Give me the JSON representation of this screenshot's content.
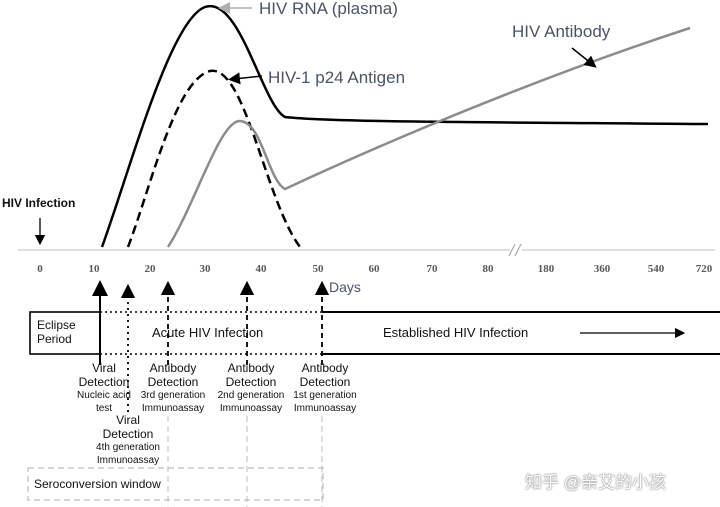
{
  "labels": {
    "hiv_rna": "HIV RNA (plasma)",
    "p24": "HIV-1 p24 Antigen",
    "antibody": "HIV Antibody",
    "infection": "HIV Infection",
    "days": "Days"
  },
  "axis": {
    "ticks": [
      "0",
      "10",
      "20",
      "30",
      "40",
      "50",
      "60",
      "70",
      "80",
      "180",
      "360",
      "540",
      "720"
    ],
    "break_mark": "//"
  },
  "periods": {
    "eclipse": [
      "Eclipse",
      "Period"
    ],
    "acute": "Acute HIV Infection",
    "established": "Established HIV Infection"
  },
  "detections": [
    {
      "title": [
        "Viral",
        "Detection"
      ],
      "sub": [
        "Nucleic acid",
        "test"
      ]
    },
    {
      "title": [
        "Viral",
        "Detection"
      ],
      "sub": [
        "4th generation",
        "Immunoassay"
      ]
    },
    {
      "title": [
        "Antibody",
        "Detection"
      ],
      "sub": [
        "3rd generation",
        "Immunoassay"
      ]
    },
    {
      "title": [
        "Antibody",
        "Detection"
      ],
      "sub": [
        "2nd generation",
        "Immunoassay"
      ]
    },
    {
      "title": [
        "Antibody",
        "Detection"
      ],
      "sub": [
        "1st generation",
        "Immunoassay"
      ]
    }
  ],
  "seroconversion": "Seroconversion window",
  "watermark": "知乎 @亲艾的小孩",
  "colors": {
    "rna": "#000000",
    "p24": "#000000",
    "antibody": "#8c8c8c",
    "label_text": "#4a5568",
    "axis_text": "#595959",
    "window_box": "#bdbdbd"
  }
}
